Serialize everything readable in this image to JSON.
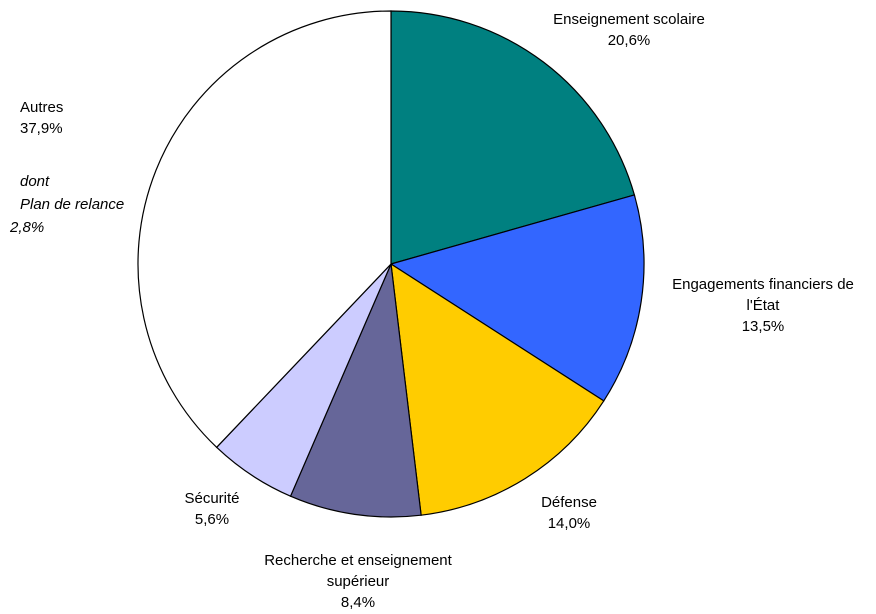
{
  "chart_data": {
    "type": "pie",
    "title": "",
    "start_angle_deg": 0,
    "direction": "clockwise",
    "slices": [
      {
        "label_lines": [
          "Enseignement scolaire"
        ],
        "value": 20.6,
        "value_label": "20,6%",
        "color": "#008080"
      },
      {
        "label_lines": [
          "Engagements financiers de",
          "l'État"
        ],
        "value": 13.5,
        "value_label": "13,5%",
        "color": "#3366FF"
      },
      {
        "label_lines": [
          "Défense"
        ],
        "value": 14.0,
        "value_label": "14,0%",
        "color": "#FFCC00"
      },
      {
        "label_lines": [
          "Recherche et enseignement",
          "supérieur"
        ],
        "value": 8.4,
        "value_label": "8,4%",
        "color": "#666699"
      },
      {
        "label_lines": [
          "Sécurité"
        ],
        "value": 5.6,
        "value_label": "5,6%",
        "color": "#CCCCFF"
      },
      {
        "label_lines": [
          "Autres"
        ],
        "value": 37.9,
        "value_label": "37,9%",
        "color": "#FFFFFF",
        "note": {
          "lines": [
            "dont",
            "Plan de relance"
          ],
          "value_label": "2,8%"
        }
      }
    ],
    "outline_color": "#000000"
  }
}
